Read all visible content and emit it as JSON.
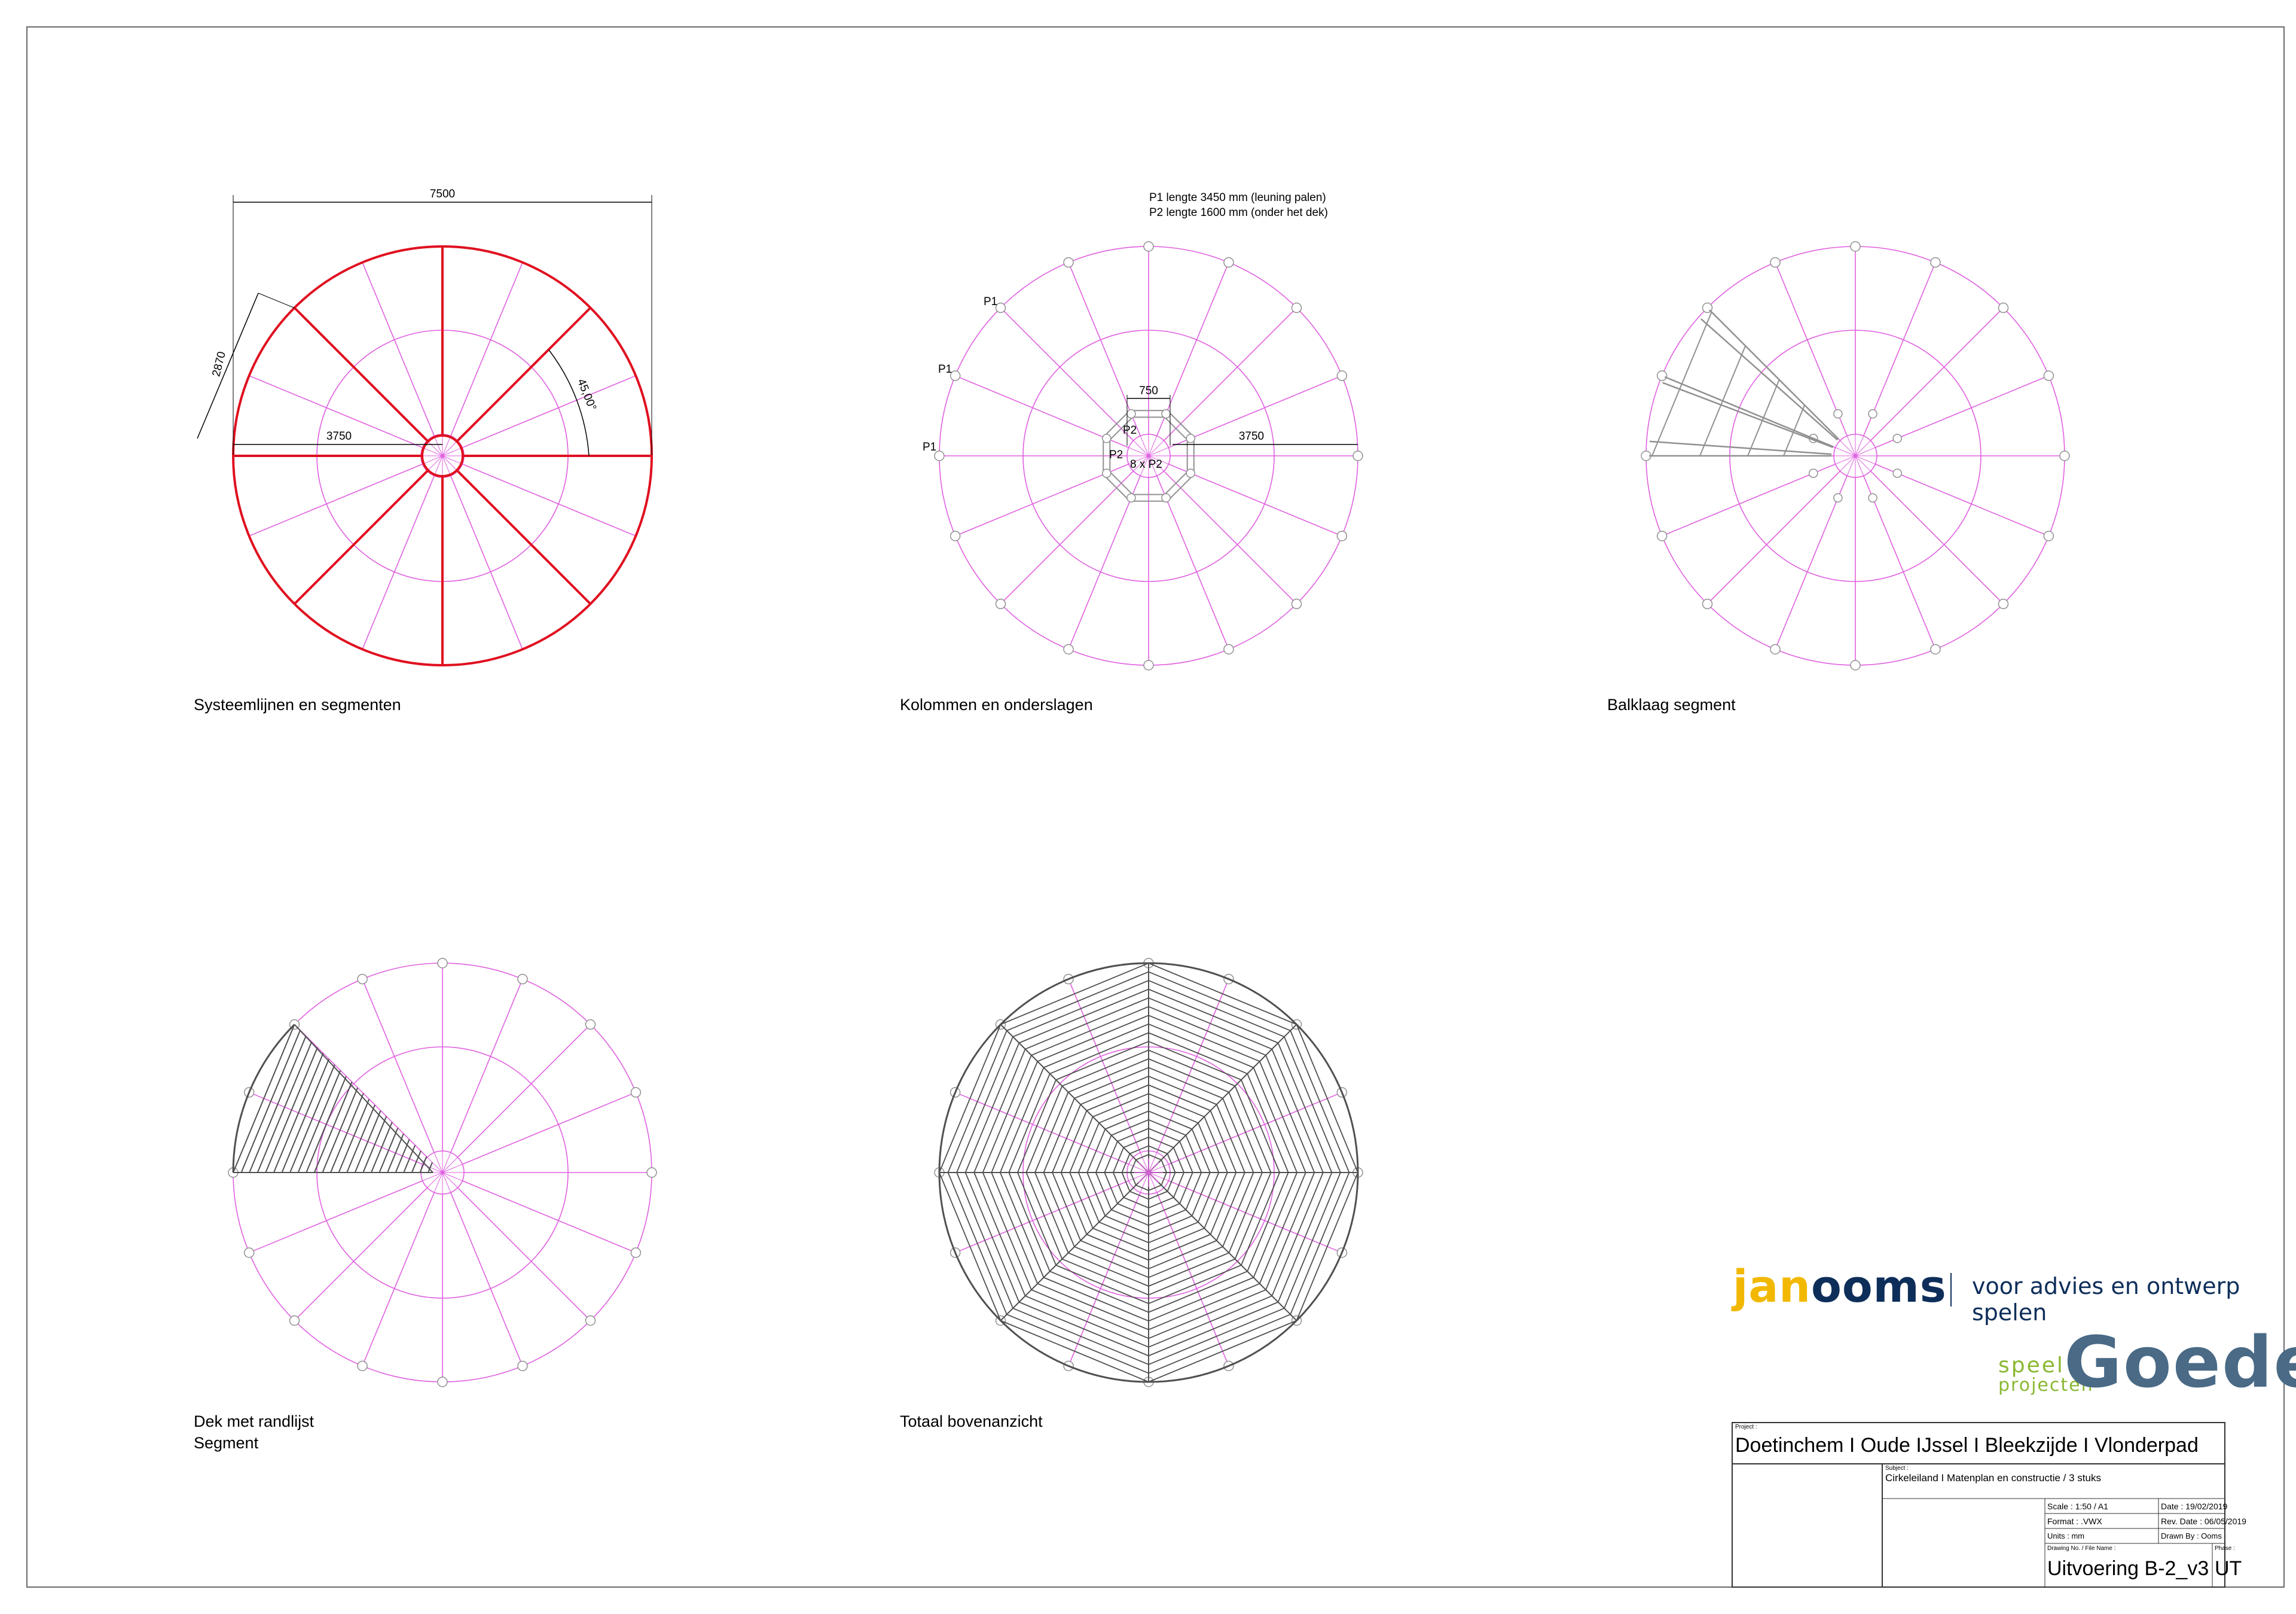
{
  "drawings": [
    {
      "caption": "Systeemlijnen en segmenten",
      "dims": {
        "width": "7500",
        "radius": "3750",
        "chord": "2870",
        "angle": "45,00°"
      }
    },
    {
      "caption": "Kolommen en onderslagen",
      "notes": [
        "P1 lengte 3450 mm (leuning palen)",
        "P2 lengte 1600 mm (onder het dek)"
      ],
      "post_labels": {
        "p1": "P1",
        "p2": "P2",
        "p2_count": "8 x P2"
      },
      "dims": {
        "inner": "750",
        "radius": "3750"
      }
    },
    {
      "caption": "Balklaag segment"
    },
    {
      "caption": "Dek met randlijst",
      "caption_2": "Segment"
    },
    {
      "caption": "Totaal bovenanzicht"
    }
  ],
  "colors": {
    "guide": "#e060e0",
    "system": "#e01020",
    "deck": "#505050",
    "structure": "#909090"
  },
  "branding": {
    "jan": "jan",
    "ooms": "ooms",
    "tagline": "voor advies en ontwerp spelen",
    "speel": "speel",
    "projecten": "projecten",
    "goede": "Goede"
  },
  "title_block": {
    "project_label": "Project :",
    "project": "Doetinchem I Oude IJssel I Bleekzijde I Vlonderpad",
    "subject_label": "Subject :",
    "subject": "Cirkeleiland I Matenplan en constructie / 3 stuks",
    "scale": "Scale : 1:50 / A1",
    "date": "Date : 19/02/2019",
    "format": "Format : .VWX",
    "rev_date": "Rev. Date : 06/05/2019",
    "units": "Units : mm",
    "drawn_by": "Drawn By : Ooms",
    "drawing_no_label": "Drawing No. / File Name :",
    "phase_label": "Phase :",
    "drawing_no": "Uitvoering B-2_v3",
    "phase": "UT"
  }
}
